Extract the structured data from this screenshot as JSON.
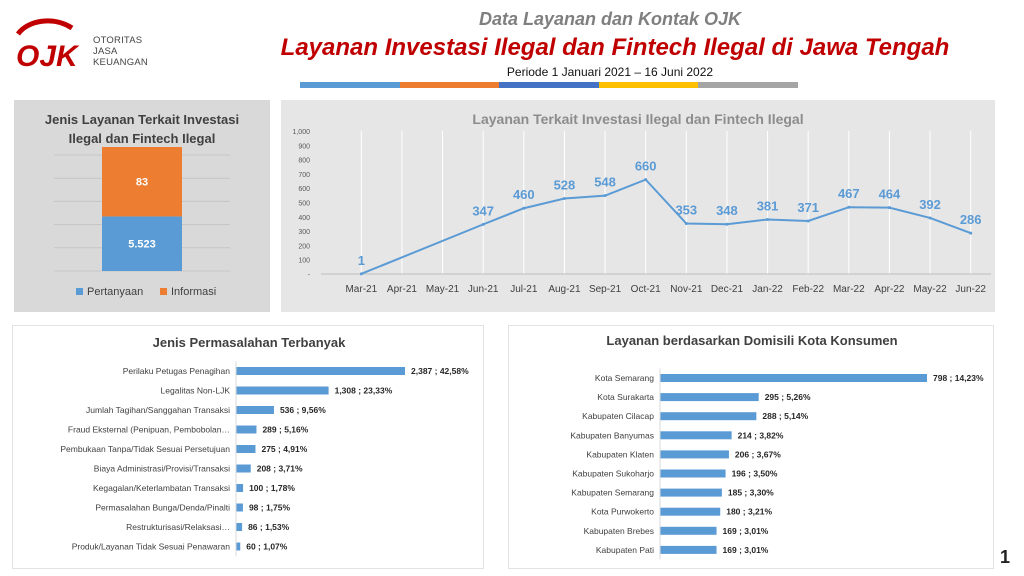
{
  "header": {
    "logo_text": "OJK",
    "logo_lines": [
      "OTORITAS",
      "JASA",
      "KEUANGAN"
    ],
    "subtitle": "Data Layanan dan Kontak OJK",
    "title": "Layanan Investasi Ilegal dan Fintech Ilegal di Jawa Tengah",
    "period": "Periode 1 Januari 2021 – 16 Juni 2022",
    "bar_colors": [
      "#5b9bd5",
      "#ed7d31",
      "#4472c4",
      "#ffc000",
      "#a5a5a5"
    ]
  },
  "page_number": "1",
  "colors": {
    "blue": "#5b9bd5",
    "orange": "#ed7d31",
    "brand_red": "#c00000"
  },
  "chart_data": [
    {
      "type": "bar",
      "stacked": true,
      "title": "Jenis Layanan Terkait Investasi Ilegal dan Fintech Ilegal",
      "title_lines": [
        "Jenis Layanan Terkait Investasi",
        "Ilegal dan Fintech Ilegal"
      ],
      "categories": [
        ""
      ],
      "series": [
        {
          "name": "Pertanyaan",
          "values": [
            5523
          ],
          "label": "5.523",
          "color": "#5b9bd5"
        },
        {
          "name": "Informasi",
          "values": [
            83
          ],
          "label": "83",
          "color": "#ed7d31"
        }
      ],
      "legend": "bottom",
      "grid": true
    },
    {
      "type": "line",
      "title": "Layanan  Terkait  Investasi  Ilegal  dan  Fintech  Ilegal",
      "x": [
        "Mar-21",
        "Apr-21",
        "May-21",
        "Jun-21",
        "Jul-21",
        "Aug-21",
        "Sep-21",
        "Oct-21",
        "Nov-21",
        "Dec-21",
        "Jan-22",
        "Feb-22",
        "Mar-22",
        "Apr-22",
        "May-22",
        "Jun-22"
      ],
      "series": [
        {
          "values": [
            1,
            null,
            null,
            347,
            460,
            528,
            548,
            660,
            353,
            348,
            381,
            371,
            467,
            464,
            392,
            286
          ],
          "color": "#5b9bd5"
        }
      ],
      "ylim": [
        0,
        1000
      ],
      "yticks": [
        "-",
        "100",
        "200",
        "300",
        "400",
        "500",
        "600",
        "700",
        "800",
        "900",
        "1,000"
      ],
      "grid": true
    },
    {
      "type": "bar",
      "orientation": "horizontal",
      "title": "Jenis Permasalahan Terbanyak",
      "categories": [
        "Perilaku Petugas Penagihan",
        "Legalitas Non-LJK",
        "Jumlah Tagihan/Sanggahan Transaksi",
        "Fraud Eksternal (Penipuan, Pembobolan…",
        "Pembukaan Tanpa/Tidak Sesuai Persetujuan",
        "Biaya Administrasi/Provisi/Transaksi",
        "Kegagalan/Keterlambatan Transaksi",
        "Permasalahan Bunga/Denda/Pinalti",
        "Restrukturisasi/Relaksasi…",
        "Produk/Layanan Tidak Sesuai Penawaran"
      ],
      "values": [
        2387,
        1308,
        536,
        289,
        275,
        208,
        100,
        98,
        86,
        60
      ],
      "labels": [
        "2,387 ; 42,58%",
        "1,308 ; 23,33%",
        "536 ; 9,56%",
        "289 ; 5,16%",
        "275 ; 4,91%",
        "208 ; 3,71%",
        "100 ; 1,78%",
        "98 ; 1,75%",
        "86 ; 1,53%",
        "60 ; 1,07%"
      ],
      "xlim": [
        0,
        2387
      ],
      "color": "#5b9bd5"
    },
    {
      "type": "bar",
      "orientation": "horizontal",
      "title": "Layanan berdasarkan Domisili Kota Konsumen",
      "categories": [
        "Kota Semarang",
        "Kota Surakarta",
        "Kabupaten Cilacap",
        "Kabupaten Banyumas",
        "Kabupaten Klaten",
        "Kabupaten Sukoharjo",
        "Kabupaten Semarang",
        "Kota Purwokerto",
        "Kabupaten Brebes",
        "Kabupaten Pati"
      ],
      "values": [
        798,
        295,
        288,
        214,
        206,
        196,
        185,
        180,
        169,
        169
      ],
      "labels": [
        "798 ; 14,23%",
        "295 ; 5,26%",
        "288 ; 5,14%",
        "214 ; 3,82%",
        "206 ; 3,67%",
        "196 ; 3,50%",
        "185 ; 3,30%",
        "180 ; 3,21%",
        "169 ; 3,01%",
        "169 ; 3,01%"
      ],
      "xlim": [
        0,
        798
      ],
      "color": "#5b9bd5"
    }
  ]
}
